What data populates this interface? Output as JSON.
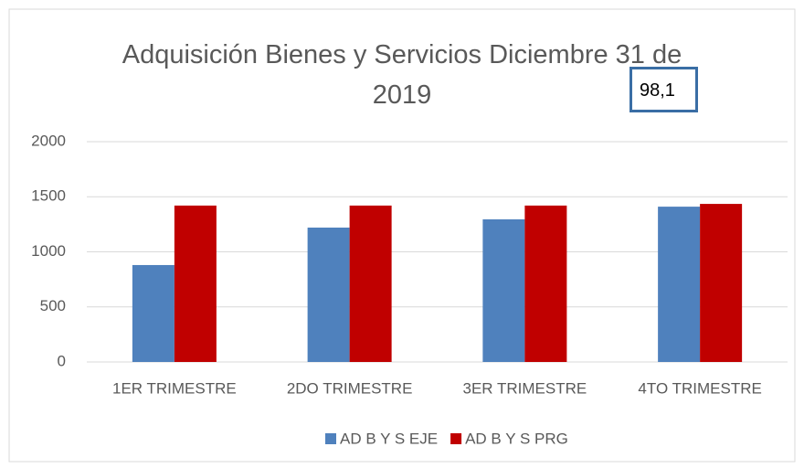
{
  "chart_data": {
    "type": "bar",
    "title": "Adquisición Bienes y Servicios Diciembre 31 de 2019",
    "annotation": "98,1",
    "categories": [
      "1ER TRIMESTRE",
      "2DO TRIMESTRE",
      "3ER TRIMESTRE",
      "4TO TRIMESTRE"
    ],
    "series": [
      {
        "name": "AD B Y S EJE",
        "color": "#4f81bd",
        "values": [
          880,
          1220,
          1295,
          1410
        ]
      },
      {
        "name": "AD B Y S PRG",
        "color": "#c00000",
        "values": [
          1420,
          1420,
          1420,
          1435
        ]
      }
    ],
    "ylim": [
      0,
      2000
    ],
    "yticks": [
      0,
      500,
      1000,
      1500,
      2000
    ],
    "grid": true,
    "legend": "bottom"
  }
}
